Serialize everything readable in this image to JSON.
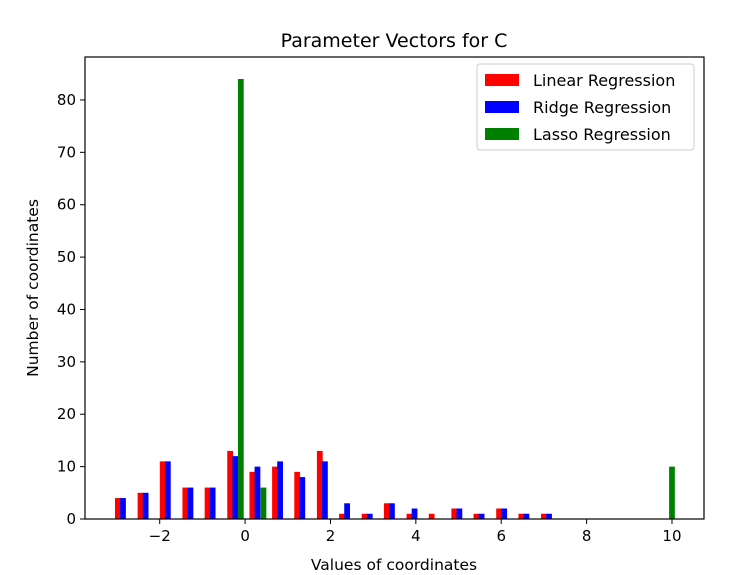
{
  "chart_data": {
    "type": "bar",
    "title": "Parameter Vectors for C",
    "xlabel": "Values of coordinates",
    "ylabel": "Number of coordinates",
    "xlim": [
      -3.75,
      10.75
    ],
    "ylim": [
      0,
      88.2
    ],
    "xticks": [
      -2,
      0,
      2,
      4,
      6,
      8,
      10
    ],
    "yticks": [
      0,
      10,
      20,
      30,
      40,
      50,
      60,
      70,
      80
    ],
    "xtick_labels": [
      "−2",
      "0",
      "2",
      "4",
      "6",
      "8",
      "10"
    ],
    "ytick_labels": [
      "0",
      "10",
      "20",
      "30",
      "40",
      "50",
      "60",
      "70",
      "80"
    ],
    "grid": false,
    "legend_position": "top-right",
    "bar_width": 0.135,
    "series": [
      {
        "name": "Linear Regression",
        "color": "#ff0000",
        "points": [
          {
            "x": -2.98,
            "y": 4
          },
          {
            "x": -2.45,
            "y": 5
          },
          {
            "x": -1.93,
            "y": 11
          },
          {
            "x": -1.4,
            "y": 6
          },
          {
            "x": -0.88,
            "y": 6
          },
          {
            "x": -0.35,
            "y": 13
          },
          {
            "x": 0.17,
            "y": 9
          },
          {
            "x": 0.7,
            "y": 10
          },
          {
            "x": 1.22,
            "y": 9
          },
          {
            "x": 1.75,
            "y": 13
          },
          {
            "x": 2.27,
            "y": 1
          },
          {
            "x": 2.8,
            "y": 1
          },
          {
            "x": 3.32,
            "y": 3
          },
          {
            "x": 3.85,
            "y": 1
          },
          {
            "x": 4.37,
            "y": 1
          },
          {
            "x": 4.9,
            "y": 2
          },
          {
            "x": 5.42,
            "y": 1
          },
          {
            "x": 5.95,
            "y": 2
          },
          {
            "x": 6.47,
            "y": 1
          },
          {
            "x": 7.0,
            "y": 1
          }
        ]
      },
      {
        "name": "Ridge Regression",
        "color": "#0000ff",
        "points": [
          {
            "x": -2.86,
            "y": 4
          },
          {
            "x": -2.33,
            "y": 5
          },
          {
            "x": -1.81,
            "y": 11
          },
          {
            "x": -1.28,
            "y": 6
          },
          {
            "x": -0.76,
            "y": 6
          },
          {
            "x": -0.23,
            "y": 12
          },
          {
            "x": 0.29,
            "y": 10
          },
          {
            "x": 0.82,
            "y": 11
          },
          {
            "x": 1.34,
            "y": 8
          },
          {
            "x": 1.87,
            "y": 11
          },
          {
            "x": 2.39,
            "y": 3
          },
          {
            "x": 2.92,
            "y": 1
          },
          {
            "x": 3.44,
            "y": 3
          },
          {
            "x": 3.97,
            "y": 2
          },
          {
            "x": 5.02,
            "y": 2
          },
          {
            "x": 5.54,
            "y": 1
          },
          {
            "x": 6.07,
            "y": 2
          },
          {
            "x": 6.59,
            "y": 1
          },
          {
            "x": 7.12,
            "y": 1
          }
        ]
      },
      {
        "name": "Lasso Regression",
        "color": "#008000",
        "points": [
          {
            "x": -0.1,
            "y": 84
          },
          {
            "x": 0.43,
            "y": 6
          },
          {
            "x": 10.0,
            "y": 10
          }
        ]
      }
    ]
  }
}
